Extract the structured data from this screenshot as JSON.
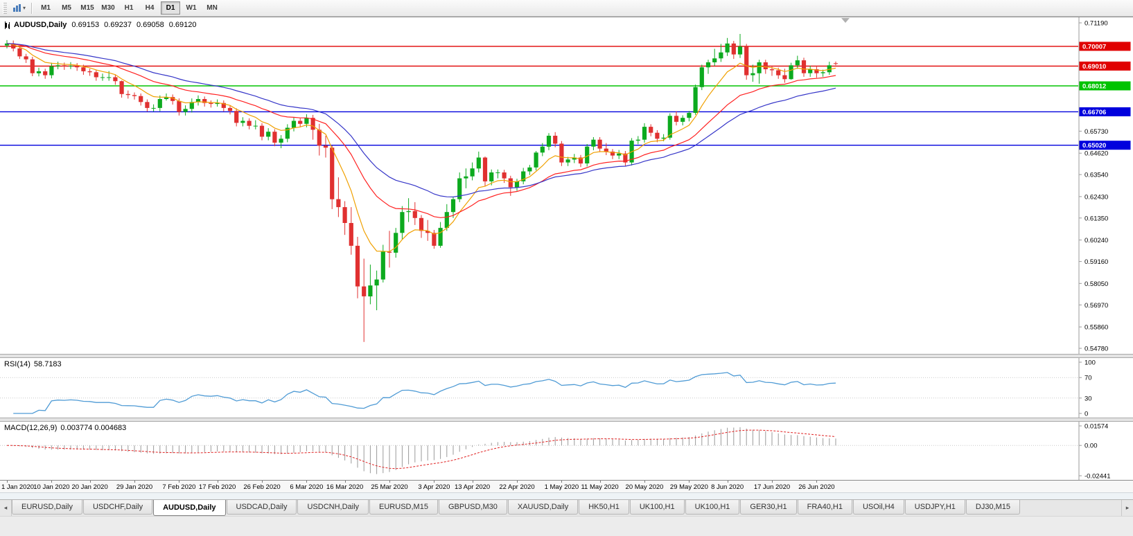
{
  "toolbar": {
    "timeframes": [
      "M1",
      "M5",
      "M15",
      "M30",
      "H1",
      "H4",
      "D1",
      "W1",
      "MN"
    ],
    "active_timeframe": "D1"
  },
  "chart": {
    "symbol_title": "AUDUSD,Daily",
    "ohlc": {
      "open": "0.69153",
      "high": "0.69237",
      "low": "0.69058",
      "close": "0.69120"
    },
    "price_axis_labels": [
      "0.71190",
      "0.65730",
      "0.64620",
      "0.63540",
      "0.62430",
      "0.61350",
      "0.60240",
      "0.59160",
      "0.58050",
      "0.56970",
      "0.55860",
      "0.54780"
    ],
    "level_lines": [
      {
        "price": "0.70007",
        "color": "#e00000"
      },
      {
        "price": "0.69010",
        "color": "#e00000"
      },
      {
        "price": "0.68012",
        "color": "#00c300"
      },
      {
        "price": "0.66706",
        "color": "#0000dd"
      },
      {
        "price": "0.65020",
        "color": "#0000dd"
      }
    ]
  },
  "rsi_panel": {
    "label": "RSI(14)",
    "value": "58.7183",
    "axis_labels": [
      "100",
      "70",
      "30",
      "0"
    ],
    "period": 14,
    "line_color": "#4f9bd5"
  },
  "macd_panel": {
    "label": "MACD(12,26,9)",
    "values": "0.003774 0.004683",
    "axis_labels": [
      "0.01574",
      "0.00",
      "-0.02441"
    ],
    "fast": 12,
    "slow": 26,
    "signal": 9,
    "hist_color": "#9a9a9a",
    "signal_color": "#e02020"
  },
  "tabs": {
    "items": [
      "EURUSD,Daily",
      "USDCHF,Daily",
      "AUDUSD,Daily",
      "USDCAD,Daily",
      "USDCNH,Daily",
      "EURUSD,M15",
      "GBPUSD,M30",
      "XAUUSD,Daily",
      "HK50,H1",
      "UK100,H1",
      "UK100,H1",
      "GER30,H1",
      "FRA40,H1",
      "USOil,H4",
      "USDJPY,H1",
      "DJ30,M15"
    ],
    "active_index": 2
  },
  "chart_data": {
    "type": "candlestick",
    "symbol": "AUDUSD",
    "timeframe": "Daily",
    "title": "AUDUSD,Daily 0.69153 0.69237 0.69058 0.69120",
    "y_range": [
      0.5478,
      0.7119
    ],
    "up_color": "#0caa1e",
    "down_color": "#e03030",
    "x_tick_labels": [
      "1 Jan 2020",
      "10 Jan 2020",
      "20 Jan 2020",
      "29 Jan 2020",
      "7 Feb 2020",
      "17 Feb 2020",
      "26 Feb 2020",
      "6 Mar 2020",
      "16 Mar 2020",
      "25 Mar 2020",
      "3 Apr 2020",
      "13 Apr 2020",
      "22 Apr 2020",
      "1 May 2020",
      "11 May 2020",
      "20 May 2020",
      "29 May 2020",
      "8 Jun 2020",
      "17 Jun 2020",
      "26 Jun 2020"
    ],
    "x_tick_bar_index": [
      0,
      7,
      13,
      20,
      27,
      33,
      40,
      47,
      53,
      60,
      67,
      73,
      80,
      87,
      93,
      100,
      107,
      113,
      120,
      127
    ],
    "candles": [
      [
        0.7005,
        0.7032,
        0.699,
        0.7015
      ],
      [
        0.7015,
        0.703,
        0.6975,
        0.699
      ],
      [
        0.699,
        0.7003,
        0.6937,
        0.695
      ],
      [
        0.695,
        0.6963,
        0.6917,
        0.6935
      ],
      [
        0.6935,
        0.6948,
        0.685,
        0.6865
      ],
      [
        0.6865,
        0.6893,
        0.6849,
        0.6875
      ],
      [
        0.6875,
        0.6888,
        0.6837,
        0.6855
      ],
      [
        0.6855,
        0.6918,
        0.6839,
        0.69
      ],
      [
        0.69,
        0.6923,
        0.6885,
        0.6905
      ],
      [
        0.6905,
        0.6919,
        0.6882,
        0.69
      ],
      [
        0.69,
        0.6921,
        0.6886,
        0.6903
      ],
      [
        0.6903,
        0.6916,
        0.6877,
        0.6895
      ],
      [
        0.6895,
        0.6908,
        0.6857,
        0.6875
      ],
      [
        0.6875,
        0.6888,
        0.6852,
        0.687
      ],
      [
        0.687,
        0.6883,
        0.6827,
        0.6845
      ],
      [
        0.6845,
        0.6863,
        0.6827,
        0.6845
      ],
      [
        0.6845,
        0.6876,
        0.6827,
        0.6845
      ],
      [
        0.6845,
        0.6858,
        0.6807,
        0.6825
      ],
      [
        0.6825,
        0.6828,
        0.6742,
        0.676
      ],
      [
        0.676,
        0.6778,
        0.6737,
        0.6755
      ],
      [
        0.6755,
        0.6768,
        0.6732,
        0.675
      ],
      [
        0.675,
        0.6763,
        0.6702,
        0.672
      ],
      [
        0.672,
        0.6733,
        0.6672,
        0.669
      ],
      [
        0.669,
        0.6708,
        0.6672,
        0.669
      ],
      [
        0.669,
        0.6753,
        0.6674,
        0.6735
      ],
      [
        0.6735,
        0.6763,
        0.6727,
        0.6745
      ],
      [
        0.6745,
        0.6758,
        0.6707,
        0.6725
      ],
      [
        0.6725,
        0.6738,
        0.6652,
        0.667
      ],
      [
        0.667,
        0.6703,
        0.6652,
        0.6685
      ],
      [
        0.6685,
        0.6738,
        0.6667,
        0.672
      ],
      [
        0.672,
        0.6753,
        0.6702,
        0.6735
      ],
      [
        0.6735,
        0.6748,
        0.6697,
        0.6715
      ],
      [
        0.6715,
        0.6728,
        0.6692,
        0.671
      ],
      [
        0.671,
        0.6733,
        0.6697,
        0.6715
      ],
      [
        0.6715,
        0.6728,
        0.6672,
        0.669
      ],
      [
        0.669,
        0.6703,
        0.6657,
        0.6675
      ],
      [
        0.6675,
        0.6688,
        0.6597,
        0.6615
      ],
      [
        0.6615,
        0.6643,
        0.6597,
        0.6625
      ],
      [
        0.6625,
        0.6638,
        0.6582,
        0.66
      ],
      [
        0.66,
        0.6628,
        0.6582,
        0.66
      ],
      [
        0.66,
        0.6613,
        0.6527,
        0.6545
      ],
      [
        0.6545,
        0.6588,
        0.6527,
        0.657
      ],
      [
        0.657,
        0.6583,
        0.6497,
        0.6515
      ],
      [
        0.6515,
        0.6553,
        0.6487,
        0.6535
      ],
      [
        0.6535,
        0.6608,
        0.6517,
        0.659
      ],
      [
        0.659,
        0.6643,
        0.6572,
        0.6625
      ],
      [
        0.6625,
        0.6638,
        0.6592,
        0.661
      ],
      [
        0.661,
        0.6658,
        0.6592,
        0.664
      ],
      [
        0.664,
        0.6655,
        0.653,
        0.658
      ],
      [
        0.658,
        0.661,
        0.645,
        0.65
      ],
      [
        0.65,
        0.655,
        0.644,
        0.649
      ],
      [
        0.649,
        0.65,
        0.618,
        0.623
      ],
      [
        0.623,
        0.634,
        0.614,
        0.619
      ],
      [
        0.619,
        0.622,
        0.605,
        0.611
      ],
      [
        0.611,
        0.619,
        0.595,
        0.5995
      ],
      [
        0.5995,
        0.604,
        0.573,
        0.579
      ],
      [
        0.579,
        0.593,
        0.551,
        0.574
      ],
      [
        0.574,
        0.59,
        0.57,
        0.5795
      ],
      [
        0.5795,
        0.587,
        0.567,
        0.5825
      ],
      [
        0.5825,
        0.6,
        0.581,
        0.5965
      ],
      [
        0.5965,
        0.607,
        0.5885,
        0.596
      ],
      [
        0.596,
        0.6085,
        0.5935,
        0.606
      ],
      [
        0.606,
        0.6195,
        0.6025,
        0.6165
      ],
      [
        0.6165,
        0.6235,
        0.6115,
        0.617
      ],
      [
        0.617,
        0.6215,
        0.61,
        0.6135
      ],
      [
        0.6135,
        0.615,
        0.6035,
        0.607
      ],
      [
        0.607,
        0.6125,
        0.602,
        0.606
      ],
      [
        0.606,
        0.6075,
        0.598,
        0.5995
      ],
      [
        0.5995,
        0.6115,
        0.5985,
        0.6085
      ],
      [
        0.6085,
        0.6205,
        0.607,
        0.6165
      ],
      [
        0.6165,
        0.624,
        0.6135,
        0.623
      ],
      [
        0.623,
        0.6365,
        0.6215,
        0.6335
      ],
      [
        0.6335,
        0.6385,
        0.6285,
        0.6345
      ],
      [
        0.6345,
        0.6415,
        0.6325,
        0.6385
      ],
      [
        0.6385,
        0.647,
        0.6365,
        0.644
      ],
      [
        0.644,
        0.6445,
        0.6295,
        0.632
      ],
      [
        0.632,
        0.638,
        0.63,
        0.6365
      ],
      [
        0.6365,
        0.638,
        0.6335,
        0.6365
      ],
      [
        0.6365,
        0.6378,
        0.6312,
        0.6335
      ],
      [
        0.6335,
        0.6348,
        0.6247,
        0.629
      ],
      [
        0.629,
        0.6333,
        0.6272,
        0.632
      ],
      [
        0.632,
        0.6388,
        0.6305,
        0.637
      ],
      [
        0.637,
        0.6403,
        0.6352,
        0.639
      ],
      [
        0.639,
        0.6473,
        0.6375,
        0.6465
      ],
      [
        0.6465,
        0.6513,
        0.6447,
        0.6495
      ],
      [
        0.6495,
        0.6563,
        0.6477,
        0.655
      ],
      [
        0.655,
        0.6568,
        0.6492,
        0.651
      ],
      [
        0.651,
        0.6523,
        0.6397,
        0.6415
      ],
      [
        0.6415,
        0.6443,
        0.6397,
        0.643
      ],
      [
        0.643,
        0.6458,
        0.6412,
        0.644
      ],
      [
        0.644,
        0.6453,
        0.6392,
        0.641
      ],
      [
        0.641,
        0.6508,
        0.6395,
        0.6495
      ],
      [
        0.6495,
        0.6543,
        0.6477,
        0.653
      ],
      [
        0.653,
        0.6543,
        0.6467,
        0.6485
      ],
      [
        0.6485,
        0.6513,
        0.6452,
        0.647
      ],
      [
        0.647,
        0.6483,
        0.6432,
        0.645
      ],
      [
        0.645,
        0.6478,
        0.6432,
        0.646
      ],
      [
        0.646,
        0.6473,
        0.6397,
        0.6415
      ],
      [
        0.6415,
        0.6538,
        0.64,
        0.6525
      ],
      [
        0.6525,
        0.6548,
        0.6507,
        0.653
      ],
      [
        0.653,
        0.6613,
        0.6515,
        0.6595
      ],
      [
        0.6595,
        0.6608,
        0.6547,
        0.6565
      ],
      [
        0.6565,
        0.6578,
        0.6517,
        0.6535
      ],
      [
        0.6535,
        0.6558,
        0.6522,
        0.654
      ],
      [
        0.654,
        0.6663,
        0.653,
        0.665
      ],
      [
        0.665,
        0.6673,
        0.6602,
        0.662
      ],
      [
        0.662,
        0.6653,
        0.6602,
        0.664
      ],
      [
        0.664,
        0.6675,
        0.6622,
        0.6665
      ],
      [
        0.6665,
        0.6808,
        0.6655,
        0.6795
      ],
      [
        0.6795,
        0.6908,
        0.678,
        0.6895
      ],
      [
        0.6895,
        0.6933,
        0.6862,
        0.692
      ],
      [
        0.692,
        0.6988,
        0.6902,
        0.694
      ],
      [
        0.694,
        0.7013,
        0.6922,
        0.697
      ],
      [
        0.697,
        0.7043,
        0.6952,
        0.7015
      ],
      [
        0.7015,
        0.7028,
        0.6937,
        0.696
      ],
      [
        0.696,
        0.7063,
        0.6942,
        0.7
      ],
      [
        0.7,
        0.7013,
        0.6832,
        0.6855
      ],
      [
        0.6855,
        0.6908,
        0.6822,
        0.6865
      ],
      [
        0.6865,
        0.6933,
        0.6812,
        0.692
      ],
      [
        0.692,
        0.6933,
        0.6862,
        0.6885
      ],
      [
        0.6885,
        0.6898,
        0.6852,
        0.688
      ],
      [
        0.688,
        0.6893,
        0.6837,
        0.6855
      ],
      [
        0.6855,
        0.6888,
        0.6817,
        0.6835
      ],
      [
        0.6835,
        0.6918,
        0.6832,
        0.6905
      ],
      [
        0.6905,
        0.6953,
        0.6887,
        0.693
      ],
      [
        0.693,
        0.6943,
        0.6847,
        0.6865
      ],
      [
        0.6865,
        0.6903,
        0.6847,
        0.6885
      ],
      [
        0.6885,
        0.6898,
        0.6842,
        0.6865
      ],
      [
        0.6865,
        0.6883,
        0.6847,
        0.687
      ],
      [
        0.687,
        0.6923,
        0.6857,
        0.6905
      ],
      [
        0.69153,
        0.69237,
        0.69058,
        0.6912
      ]
    ],
    "moving_averages": [
      {
        "name": "fast-ma",
        "type": "ema",
        "period": 8,
        "color": "#f0a000"
      },
      {
        "name": "medium-ma",
        "type": "ema",
        "period": 21,
        "color": "#ff2020"
      },
      {
        "name": "slow-ma",
        "type": "ema",
        "period": 34,
        "color": "#3535c8"
      }
    ],
    "indicators": {
      "rsi": {
        "period": 14,
        "current": 58.7183,
        "levels": [
          70,
          30
        ],
        "axis_max": 100,
        "axis_min": 0
      },
      "macd": {
        "fast": 12,
        "slow": 26,
        "signal": 9,
        "current_macd": 0.003774,
        "current_signal": 0.004683,
        "axis_max": 0.01574,
        "axis_min": -0.02441
      }
    }
  }
}
